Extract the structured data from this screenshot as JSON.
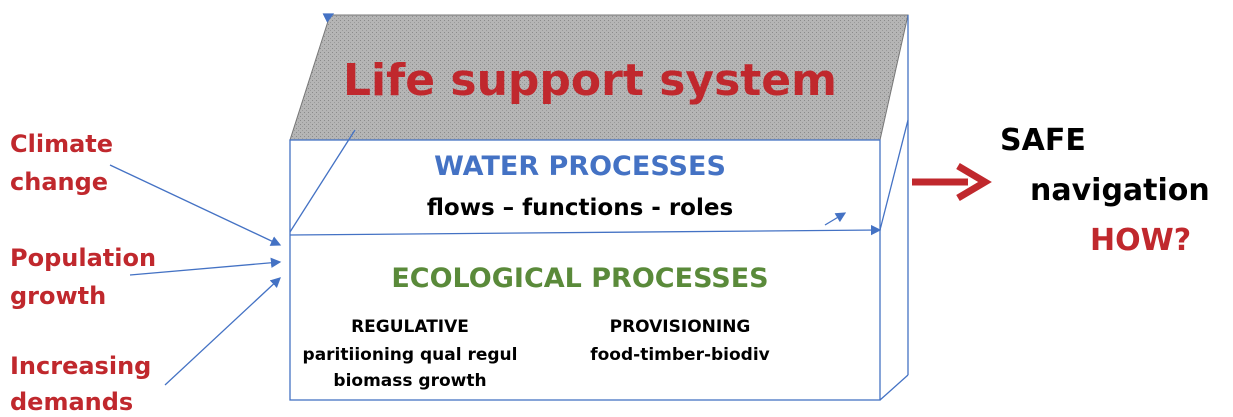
{
  "drivers": [
    [
      "Climate",
      "change"
    ],
    [
      "Population",
      "growth"
    ],
    [
      "Increasing",
      "demands"
    ]
  ],
  "box": {
    "title": "Life support system",
    "water": {
      "title": "WATER PROCESSES",
      "subtitle": "flows – functions - roles"
    },
    "ecological": {
      "title": "ECOLOGICAL PROCESSES",
      "regulative": {
        "title": "REGULATIVE",
        "lines": [
          "paritiioning qual regul",
          "biomass growth"
        ]
      },
      "provisioning": {
        "title": "PROVISIONING",
        "lines": [
          "food-timber-biodiv"
        ]
      }
    }
  },
  "outcome": [
    "SAFE",
    "navigation",
    "HOW?"
  ]
}
